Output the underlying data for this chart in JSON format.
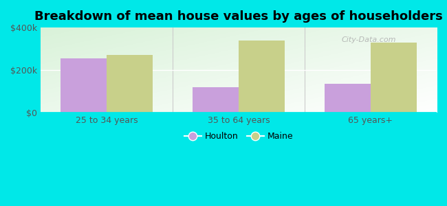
{
  "title": "Breakdown of mean house values by ages of householders",
  "categories": [
    "25 to 34 years",
    "35 to 64 years",
    "65 years+"
  ],
  "houlton_values": [
    255000,
    120000,
    135000
  ],
  "maine_values": [
    270000,
    340000,
    330000
  ],
  "houlton_color": "#c9a0dc",
  "maine_color": "#c8d08a",
  "background_color": "#00e8e8",
  "ylim": [
    0,
    400000
  ],
  "yticks": [
    0,
    200000,
    400000
  ],
  "ytick_labels": [
    "$0",
    "$200k",
    "$400k"
  ],
  "legend_labels": [
    "Houlton",
    "Maine"
  ],
  "bar_width": 0.35,
  "title_fontsize": 13,
  "tick_fontsize": 9,
  "legend_fontsize": 9
}
